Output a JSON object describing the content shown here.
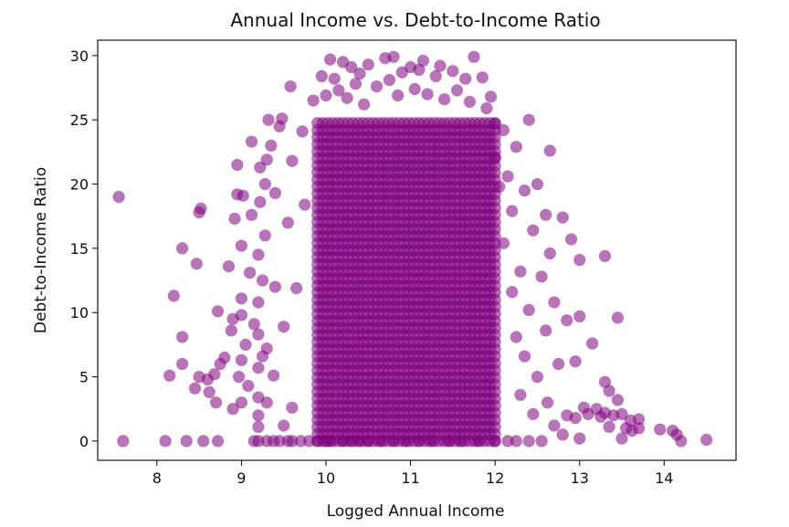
{
  "chart_data": {
    "type": "scatter",
    "title": "Annual Income vs. Debt-to-Income Ratio",
    "xlabel": "Logged Annual Income",
    "ylabel": "Debt-to-Income Ratio",
    "xlim": [
      7.3,
      14.85
    ],
    "ylim": [
      -1.5,
      31.2
    ],
    "xticks": [
      "8",
      "9",
      "10",
      "11",
      "12",
      "13",
      "14"
    ],
    "yticks": [
      "0",
      "5",
      "10",
      "15",
      "20",
      "25",
      "30"
    ],
    "marker_color": "#800080",
    "marker_alpha": 0.55,
    "grid": false,
    "legend": "none",
    "dense_core": {
      "x_range": [
        9.9,
        12.0
      ],
      "y_range": [
        0,
        25
      ]
    },
    "points": [
      [
        7.55,
        19.0
      ],
      [
        7.6,
        0.0
      ],
      [
        8.1,
        0.0
      ],
      [
        8.35,
        0.0
      ],
      [
        8.55,
        0.0
      ],
      [
        8.72,
        0.0
      ],
      [
        8.2,
        11.3
      ],
      [
        8.15,
        5.1
      ],
      [
        8.3,
        6.0
      ],
      [
        8.3,
        8.1
      ],
      [
        8.3,
        15.0
      ],
      [
        8.47,
        13.8
      ],
      [
        8.5,
        17.8
      ],
      [
        8.52,
        18.1
      ],
      [
        8.45,
        4.1
      ],
      [
        8.5,
        5.0
      ],
      [
        8.6,
        4.8
      ],
      [
        8.62,
        3.8
      ],
      [
        8.68,
        5.2
      ],
      [
        8.72,
        10.1
      ],
      [
        8.7,
        3.0
      ],
      [
        8.75,
        6.0
      ],
      [
        8.8,
        6.5
      ],
      [
        8.85,
        13.6
      ],
      [
        8.88,
        8.6
      ],
      [
        8.9,
        2.5
      ],
      [
        8.9,
        9.5
      ],
      [
        8.92,
        17.3
      ],
      [
        8.95,
        19.2
      ],
      [
        8.95,
        21.5
      ],
      [
        8.97,
        5.0
      ],
      [
        9.0,
        3.0
      ],
      [
        9.0,
        6.3
      ],
      [
        9.0,
        9.8
      ],
      [
        9.0,
        11.1
      ],
      [
        9.0,
        15.2
      ],
      [
        9.02,
        19.1
      ],
      [
        9.05,
        7.5
      ],
      [
        9.08,
        4.3
      ],
      [
        9.1,
        13.1
      ],
      [
        9.12,
        17.6
      ],
      [
        9.12,
        23.3
      ],
      [
        9.15,
        0.0
      ],
      [
        9.15,
        9.1
      ],
      [
        9.2,
        0.0
      ],
      [
        9.2,
        1.1
      ],
      [
        9.2,
        2.0
      ],
      [
        9.2,
        3.4
      ],
      [
        9.2,
        5.7
      ],
      [
        9.2,
        8.3
      ],
      [
        9.2,
        10.8
      ],
      [
        9.2,
        14.5
      ],
      [
        9.22,
        18.6
      ],
      [
        9.22,
        21.3
      ],
      [
        9.25,
        6.6
      ],
      [
        9.25,
        12.5
      ],
      [
        9.28,
        16.0
      ],
      [
        9.28,
        20.0
      ],
      [
        9.3,
        3.0
      ],
      [
        9.3,
        0.0
      ],
      [
        9.3,
        7.2
      ],
      [
        9.3,
        21.9
      ],
      [
        9.32,
        25.0
      ],
      [
        9.35,
        23.0
      ],
      [
        9.38,
        5.1
      ],
      [
        9.38,
        0.0
      ],
      [
        9.4,
        12.0
      ],
      [
        9.4,
        19.3
      ],
      [
        9.45,
        0.0
      ],
      [
        9.45,
        24.5
      ],
      [
        9.48,
        25.1
      ],
      [
        9.5,
        1.2
      ],
      [
        9.5,
        8.9
      ],
      [
        9.55,
        0.0
      ],
      [
        9.55,
        17.0
      ],
      [
        9.58,
        27.6
      ],
      [
        9.6,
        0.0
      ],
      [
        9.6,
        2.6
      ],
      [
        9.6,
        21.8
      ],
      [
        9.65,
        11.9
      ],
      [
        9.7,
        0.0
      ],
      [
        9.72,
        24.1
      ],
      [
        9.75,
        18.4
      ],
      [
        9.8,
        0.0
      ],
      [
        9.85,
        26.5
      ],
      [
        9.9,
        0.0
      ],
      [
        9.95,
        28.4
      ],
      [
        10.0,
        0.0
      ],
      [
        10.0,
        26.9
      ],
      [
        10.05,
        0.0
      ],
      [
        10.05,
        29.7
      ],
      [
        10.1,
        28.2
      ],
      [
        10.15,
        27.3
      ],
      [
        10.2,
        29.5
      ],
      [
        10.2,
        0.0
      ],
      [
        10.25,
        26.7
      ],
      [
        10.3,
        29.1
      ],
      [
        10.3,
        0.0
      ],
      [
        10.35,
        27.8
      ],
      [
        10.4,
        28.6
      ],
      [
        10.4,
        0.0
      ],
      [
        10.45,
        26.2
      ],
      [
        10.5,
        29.3
      ],
      [
        10.5,
        0.0
      ],
      [
        10.6,
        27.6
      ],
      [
        10.65,
        0.0
      ],
      [
        10.7,
        29.8
      ],
      [
        10.75,
        28.1
      ],
      [
        10.8,
        0.0
      ],
      [
        10.8,
        29.9
      ],
      [
        10.85,
        26.9
      ],
      [
        10.9,
        28.7
      ],
      [
        10.95,
        0.0
      ],
      [
        11.0,
        29.1
      ],
      [
        11.05,
        27.4
      ],
      [
        11.1,
        28.9
      ],
      [
        11.1,
        0.0
      ],
      [
        11.15,
        29.6
      ],
      [
        11.2,
        27.0
      ],
      [
        11.25,
        0.0
      ],
      [
        11.3,
        28.4
      ],
      [
        11.35,
        29.2
      ],
      [
        11.4,
        26.6
      ],
      [
        11.45,
        0.0
      ],
      [
        11.5,
        28.8
      ],
      [
        11.55,
        27.3
      ],
      [
        11.6,
        0.0
      ],
      [
        11.65,
        28.2
      ],
      [
        11.7,
        26.4
      ],
      [
        11.75,
        29.9
      ],
      [
        11.8,
        0.0
      ],
      [
        11.85,
        28.3
      ],
      [
        11.9,
        25.9
      ],
      [
        11.95,
        26.8
      ],
      [
        12.0,
        0.0
      ],
      [
        12.0,
        24.7
      ],
      [
        12.0,
        22.1
      ],
      [
        12.05,
        19.8
      ],
      [
        12.1,
        24.2
      ],
      [
        12.1,
        15.4
      ],
      [
        12.15,
        0.0
      ],
      [
        12.15,
        20.6
      ],
      [
        12.2,
        11.6
      ],
      [
        12.2,
        17.9
      ],
      [
        12.25,
        0.0
      ],
      [
        12.25,
        22.9
      ],
      [
        12.25,
        8.1
      ],
      [
        12.3,
        13.2
      ],
      [
        12.3,
        3.6
      ],
      [
        12.35,
        19.5
      ],
      [
        12.35,
        6.6
      ],
      [
        12.4,
        25.0
      ],
      [
        12.4,
        10.2
      ],
      [
        12.4,
        0.0
      ],
      [
        12.45,
        16.4
      ],
      [
        12.45,
        2.1
      ],
      [
        12.5,
        20.0
      ],
      [
        12.5,
        5.0
      ],
      [
        12.55,
        12.8
      ],
      [
        12.55,
        0.0
      ],
      [
        12.6,
        17.6
      ],
      [
        12.6,
        8.6
      ],
      [
        12.62,
        3.0
      ],
      [
        12.65,
        22.6
      ],
      [
        12.65,
        14.6
      ],
      [
        12.7,
        10.8
      ],
      [
        12.7,
        1.2
      ],
      [
        12.75,
        6.0
      ],
      [
        12.8,
        17.4
      ],
      [
        12.8,
        0.5
      ],
      [
        12.85,
        9.4
      ],
      [
        12.85,
        2.0
      ],
      [
        12.9,
        15.7
      ],
      [
        12.95,
        6.2
      ],
      [
        12.95,
        1.8
      ],
      [
        13.0,
        14.1
      ],
      [
        13.0,
        9.7
      ],
      [
        13.0,
        0.2
      ],
      [
        13.05,
        2.6
      ],
      [
        13.1,
        2.1
      ],
      [
        13.15,
        7.6
      ],
      [
        13.2,
        2.5
      ],
      [
        13.25,
        1.9
      ],
      [
        13.3,
        14.4
      ],
      [
        13.3,
        4.6
      ],
      [
        13.3,
        2.2
      ],
      [
        13.35,
        3.9
      ],
      [
        13.35,
        1.1
      ],
      [
        13.4,
        2.0
      ],
      [
        13.45,
        3.2
      ],
      [
        13.45,
        9.6
      ],
      [
        13.5,
        0.2
      ],
      [
        13.5,
        2.1
      ],
      [
        13.55,
        1.0
      ],
      [
        13.6,
        1.6
      ],
      [
        13.62,
        0.8
      ],
      [
        13.7,
        1.7
      ],
      [
        13.7,
        1.0
      ],
      [
        13.95,
        0.9
      ],
      [
        14.1,
        0.8
      ],
      [
        14.15,
        0.5
      ],
      [
        14.2,
        0.0
      ],
      [
        14.5,
        0.1
      ]
    ]
  }
}
